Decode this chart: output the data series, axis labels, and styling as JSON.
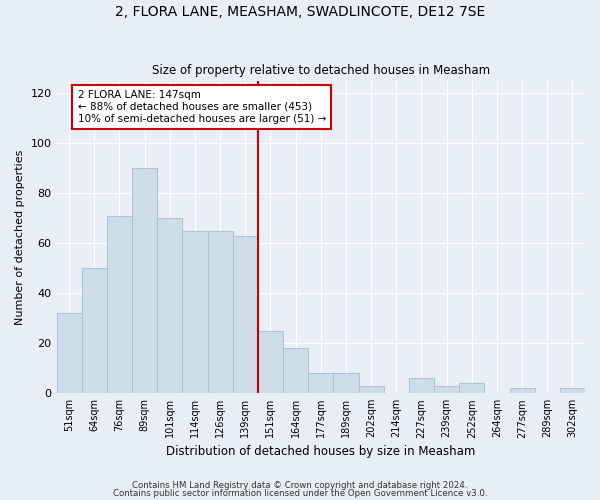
{
  "title": "2, FLORA LANE, MEASHAM, SWADLINCOTE, DE12 7SE",
  "subtitle": "Size of property relative to detached houses in Measham",
  "xlabel_bottom": "Distribution of detached houses by size in Measham",
  "ylabel": "Number of detached properties",
  "bar_color": "#ccdde8",
  "bar_edge_color": "#aabbcc",
  "fig_background": "#e8eef5",
  "plot_background": "#e8eef5",
  "categories": [
    "51sqm",
    "64sqm",
    "76sqm",
    "89sqm",
    "101sqm",
    "114sqm",
    "126sqm",
    "139sqm",
    "151sqm",
    "164sqm",
    "177sqm",
    "189sqm",
    "202sqm",
    "214sqm",
    "227sqm",
    "239sqm",
    "252sqm",
    "264sqm",
    "277sqm",
    "289sqm",
    "302sqm"
  ],
  "values": [
    32,
    50,
    71,
    90,
    70,
    65,
    65,
    63,
    25,
    18,
    8,
    8,
    3,
    0,
    6,
    3,
    4,
    0,
    2,
    0,
    2
  ],
  "vline_color": "#cc0000",
  "annotation_text": "2 FLORA LANE: 147sqm\n← 88% of detached houses are smaller (453)\n10% of semi-detached houses are larger (51) →",
  "annotation_box_color": "#ffffff",
  "annotation_box_edge": "#cc0000",
  "footnote1": "Contains HM Land Registry data © Crown copyright and database right 2024.",
  "footnote2": "Contains public sector information licensed under the Open Government Licence v3.0.",
  "ylim": [
    0,
    125
  ],
  "yticks": [
    0,
    20,
    40,
    60,
    80,
    100,
    120
  ]
}
